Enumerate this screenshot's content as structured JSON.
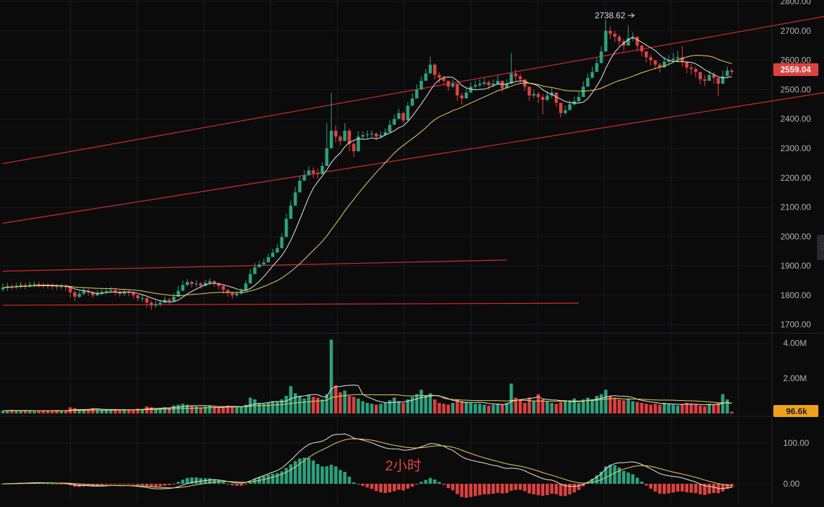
{
  "chart_data": {
    "type": "candlestick",
    "timeframe_label": "2小时",
    "colors": {
      "up": "#27a37f",
      "down": "#e0403e",
      "ma_fast": "#e8e8e8",
      "ma_slow": "#e6d35a",
      "trendline": "#d62b2b",
      "price_badge": "#e0403e",
      "volume_badge": "#f0a21a",
      "grid": "#1b1b1f",
      "background": "#0b0b0c"
    },
    "price_axis": {
      "ticks": [
        "2800.00",
        "2700.00",
        "2600.00",
        "2500.00",
        "2400.00",
        "2300.00",
        "2200.00",
        "2100.00",
        "2000.00",
        "1900.00",
        "1800.00",
        "1700.00"
      ],
      "range": [
        1680,
        2805
      ],
      "current_price": "2559.04",
      "high_annotation": "2738.62"
    },
    "volume_axis": {
      "ticks": [
        "4.00M",
        "2.00M"
      ],
      "current_volume": "96.6k"
    },
    "macd_axis": {
      "ticks": [
        "100.00",
        "0.00"
      ]
    },
    "closes": [
      1825,
      1830,
      1828,
      1832,
      1835,
      1832,
      1836,
      1838,
      1835,
      1833,
      1832,
      1830,
      1828,
      1830,
      1827,
      1810,
      1795,
      1805,
      1815,
      1810,
      1800,
      1808,
      1812,
      1815,
      1818,
      1812,
      1805,
      1810,
      1808,
      1800,
      1790,
      1790,
      1775,
      1765,
      1770,
      1775,
      1785,
      1780,
      1795,
      1815,
      1835,
      1845,
      1838,
      1840,
      1832,
      1842,
      1848,
      1840,
      1832,
      1818,
      1808,
      1800,
      1806,
      1815,
      1840,
      1872,
      1895,
      1905,
      1912,
      1930,
      1945,
      1960,
      1998,
      2060,
      2105,
      2150,
      2190,
      2208,
      2225,
      2215,
      2212,
      2240,
      2300,
      2360,
      2340,
      2325,
      2360,
      2315,
      2290,
      2340,
      2345,
      2348,
      2350,
      2340,
      2345,
      2355,
      2380,
      2400,
      2420,
      2395,
      2445,
      2470,
      2500,
      2530,
      2555,
      2585,
      2550,
      2540,
      2530,
      2510,
      2520,
      2480,
      2470,
      2490,
      2510,
      2515,
      2520,
      2525,
      2515,
      2520,
      2530,
      2505,
      2520,
      2555,
      2545,
      2535,
      2510,
      2480,
      2485,
      2475,
      2465,
      2480,
      2490,
      2455,
      2420,
      2430,
      2450,
      2460,
      2475,
      2510,
      2540,
      2560,
      2590,
      2630,
      2700,
      2690,
      2680,
      2665,
      2650,
      2675,
      2680,
      2650,
      2630,
      2610,
      2600,
      2585,
      2575,
      2595,
      2600,
      2605,
      2610,
      2595,
      2575,
      2570,
      2560,
      2535,
      2530,
      2550,
      2540,
      2520,
      2545,
      2565,
      2560
    ],
    "ranges": [
      [
        1812,
        1840
      ],
      [
        1815,
        1842
      ],
      [
        1818,
        1838
      ],
      [
        1820,
        1842
      ],
      [
        1822,
        1845
      ],
      [
        1820,
        1842
      ],
      [
        1826,
        1846
      ],
      [
        1828,
        1848
      ],
      [
        1826,
        1846
      ],
      [
        1824,
        1843
      ],
      [
        1822,
        1841
      ],
      [
        1820,
        1840
      ],
      [
        1818,
        1838
      ],
      [
        1820,
        1840
      ],
      [
        1815,
        1838
      ],
      [
        1792,
        1830
      ],
      [
        1780,
        1818
      ],
      [
        1790,
        1815
      ],
      [
        1800,
        1825
      ],
      [
        1798,
        1822
      ],
      [
        1790,
        1815
      ],
      [
        1796,
        1818
      ],
      [
        1800,
        1822
      ],
      [
        1805,
        1825
      ],
      [
        1808,
        1828
      ],
      [
        1800,
        1825
      ],
      [
        1795,
        1818
      ],
      [
        1798,
        1820
      ],
      [
        1796,
        1818
      ],
      [
        1788,
        1812
      ],
      [
        1780,
        1802
      ],
      [
        1778,
        1800
      ],
      [
        1758,
        1795
      ],
      [
        1750,
        1782
      ],
      [
        1758,
        1780
      ],
      [
        1762,
        1785
      ],
      [
        1772,
        1795
      ],
      [
        1770,
        1792
      ],
      [
        1780,
        1808
      ],
      [
        1800,
        1832
      ],
      [
        1820,
        1850
      ],
      [
        1830,
        1855
      ],
      [
        1826,
        1850
      ],
      [
        1828,
        1852
      ],
      [
        1822,
        1846
      ],
      [
        1830,
        1852
      ],
      [
        1834,
        1858
      ],
      [
        1828,
        1852
      ],
      [
        1820,
        1845
      ],
      [
        1805,
        1835
      ],
      [
        1795,
        1820
      ],
      [
        1788,
        1812
      ],
      [
        1795,
        1815
      ],
      [
        1802,
        1825
      ],
      [
        1825,
        1850
      ],
      [
        1855,
        1890
      ],
      [
        1880,
        1910
      ],
      [
        1895,
        1918
      ],
      [
        1900,
        1925
      ],
      [
        1915,
        1942
      ],
      [
        1930,
        1958
      ],
      [
        1948,
        1975
      ],
      [
        1975,
        2012
      ],
      [
        2040,
        2078
      ],
      [
        2090,
        2122
      ],
      [
        2130,
        2168
      ],
      [
        2175,
        2205
      ],
      [
        2192,
        2225
      ],
      [
        2210,
        2240
      ],
      [
        2200,
        2235
      ],
      [
        2198,
        2230
      ],
      [
        2225,
        2252
      ],
      [
        2280,
        2385
      ],
      [
        2330,
        2490
      ],
      [
        2320,
        2378
      ],
      [
        2310,
        2345
      ],
      [
        2345,
        2385
      ],
      [
        2290,
        2368
      ],
      [
        2270,
        2325
      ],
      [
        2320,
        2358
      ],
      [
        2332,
        2358
      ],
      [
        2335,
        2360
      ],
      [
        2338,
        2362
      ],
      [
        2328,
        2355
      ],
      [
        2335,
        2358
      ],
      [
        2342,
        2368
      ],
      [
        2365,
        2395
      ],
      [
        2388,
        2415
      ],
      [
        2408,
        2435
      ],
      [
        2385,
        2425
      ],
      [
        2430,
        2458
      ],
      [
        2455,
        2488
      ],
      [
        2485,
        2518
      ],
      [
        2512,
        2545
      ],
      [
        2538,
        2570
      ],
      [
        2565,
        2612
      ],
      [
        2535,
        2590
      ],
      [
        2522,
        2560
      ],
      [
        2515,
        2548
      ],
      [
        2495,
        2528
      ],
      [
        2505,
        2535
      ],
      [
        2462,
        2505
      ],
      [
        2448,
        2490
      ],
      [
        2475,
        2505
      ],
      [
        2495,
        2525
      ],
      [
        2502,
        2530
      ],
      [
        2508,
        2535
      ],
      [
        2512,
        2540
      ],
      [
        2500,
        2532
      ],
      [
        2508,
        2535
      ],
      [
        2515,
        2548
      ],
      [
        2492,
        2530
      ],
      [
        2505,
        2535
      ],
      [
        2535,
        2625
      ],
      [
        2530,
        2568
      ],
      [
        2520,
        2555
      ],
      [
        2495,
        2530
      ],
      [
        2462,
        2510
      ],
      [
        2470,
        2500
      ],
      [
        2455,
        2492
      ],
      [
        2415,
        2485
      ],
      [
        2460,
        2495
      ],
      [
        2470,
        2505
      ],
      [
        2440,
        2478
      ],
      [
        2405,
        2448
      ],
      [
        2415,
        2445
      ],
      [
        2432,
        2465
      ],
      [
        2445,
        2475
      ],
      [
        2458,
        2492
      ],
      [
        2492,
        2528
      ],
      [
        2522,
        2555
      ],
      [
        2545,
        2578
      ],
      [
        2572,
        2608
      ],
      [
        2610,
        2648
      ],
      [
        2680,
        2738
      ],
      [
        2672,
        2715
      ],
      [
        2662,
        2700
      ],
      [
        2648,
        2688
      ],
      [
        2632,
        2672
      ],
      [
        2658,
        2718
      ],
      [
        2665,
        2695
      ],
      [
        2632,
        2678
      ],
      [
        2612,
        2652
      ],
      [
        2592,
        2632
      ],
      [
        2582,
        2620
      ],
      [
        2568,
        2600
      ],
      [
        2558,
        2592
      ],
      [
        2575,
        2612
      ],
      [
        2582,
        2618
      ],
      [
        2590,
        2625
      ],
      [
        2592,
        2632
      ],
      [
        2578,
        2648
      ],
      [
        2555,
        2598
      ],
      [
        2552,
        2588
      ],
      [
        2542,
        2578
      ],
      [
        2518,
        2555
      ],
      [
        2512,
        2550
      ],
      [
        2532,
        2565
      ],
      [
        2520,
        2560
      ],
      [
        2478,
        2540
      ],
      [
        2520,
        2565
      ],
      [
        2548,
        2578
      ],
      [
        2550,
        2570
      ]
    ],
    "volume_relative": [
      0.15,
      0.18,
      0.2,
      0.14,
      0.16,
      0.18,
      0.15,
      0.13,
      0.15,
      0.17,
      0.14,
      0.16,
      0.2,
      0.15,
      0.16,
      0.35,
      0.3,
      0.22,
      0.2,
      0.25,
      0.3,
      0.22,
      0.2,
      0.18,
      0.22,
      0.2,
      0.18,
      0.25,
      0.22,
      0.2,
      0.28,
      0.25,
      0.4,
      0.35,
      0.3,
      0.28,
      0.35,
      0.3,
      0.45,
      0.5,
      0.55,
      0.5,
      0.42,
      0.4,
      0.35,
      0.4,
      0.45,
      0.38,
      0.35,
      0.4,
      0.45,
      0.38,
      0.35,
      0.4,
      0.5,
      0.9,
      0.8,
      0.6,
      0.55,
      0.6,
      0.7,
      0.65,
      0.8,
      1.0,
      1.55,
      1.15,
      1.0,
      0.85,
      1.05,
      0.95,
      0.9,
      0.8,
      1.1,
      4.2,
      1.6,
      1.2,
      1.3,
      1.0,
      0.95,
      0.85,
      0.7,
      0.6,
      0.55,
      0.5,
      0.55,
      0.6,
      0.75,
      0.9,
      0.7,
      0.6,
      0.8,
      0.95,
      1.1,
      1.35,
      1.0,
      1.15,
      0.8,
      0.6,
      0.55,
      0.5,
      0.6,
      0.8,
      0.7,
      0.65,
      0.6,
      0.55,
      0.55,
      0.5,
      0.45,
      0.5,
      0.55,
      0.5,
      0.6,
      1.7,
      0.9,
      0.8,
      0.6,
      0.9,
      0.7,
      1.1,
      0.8,
      0.7,
      0.6,
      0.55,
      0.65,
      0.7,
      0.75,
      0.85,
      0.6,
      0.8,
      0.9,
      0.8,
      1.0,
      1.1,
      1.35,
      1.0,
      0.9,
      0.8,
      0.75,
      0.85,
      0.7,
      0.65,
      0.6,
      0.55,
      0.5,
      0.55,
      0.5,
      0.6,
      0.55,
      0.5,
      0.45,
      0.5,
      0.6,
      0.55,
      0.5,
      0.45,
      0.4,
      0.55,
      0.5,
      0.6,
      1.1,
      0.8,
      0.1
    ],
    "trendlines": [
      {
        "from_price": [
          0,
          2248
        ],
        "to_price": [
          203,
          2805
        ]
      },
      {
        "from_price": [
          0,
          2045
        ],
        "to_price": [
          195,
          2520
        ]
      },
      {
        "from_price": [
          0,
          1882
        ],
        "to_price": [
          112,
          1920
        ]
      },
      {
        "from_price": [
          0,
          1766
        ],
        "to_price": [
          128,
          1773
        ]
      }
    ]
  }
}
